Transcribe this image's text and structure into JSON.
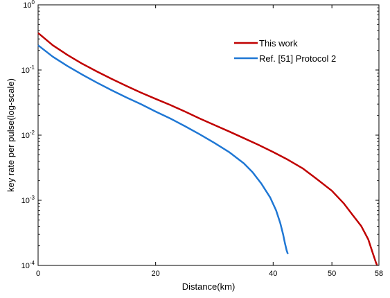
{
  "chart_data": {
    "type": "line",
    "title": "",
    "xlabel": "Distance(km)",
    "ylabel": "key rate per pulse(log-scale)",
    "xlim": [
      0,
      58
    ],
    "ylim": [
      0.0001,
      1
    ],
    "yscale": "log",
    "grid": false,
    "legend_position": "top-right",
    "x_ticks": [
      {
        "value": 0,
        "label": "0"
      },
      {
        "value": 20,
        "label": "20"
      },
      {
        "value": 40,
        "label": "40"
      },
      {
        "value": 50,
        "label": "50"
      },
      {
        "value": 58,
        "label": "58"
      }
    ],
    "y_ticks": [
      {
        "value": 0.0001,
        "base": "10",
        "exp": "-4"
      },
      {
        "value": 0.001,
        "base": "10",
        "exp": "-3"
      },
      {
        "value": 0.01,
        "base": "10",
        "exp": "-2"
      },
      {
        "value": 0.1,
        "base": "10",
        "exp": "-1"
      },
      {
        "value": 1,
        "base": "10",
        "exp": "0"
      }
    ],
    "series": [
      {
        "name": "This work",
        "color": "#c00000",
        "x": [
          0,
          2.5,
          5,
          7.5,
          10,
          12.5,
          15,
          17.5,
          20,
          22.5,
          25,
          27.5,
          30,
          32.5,
          35,
          37.5,
          40,
          42.5,
          45,
          47.5,
          50,
          52,
          53.5,
          55,
          56.2,
          57,
          57.5,
          57.7
        ],
        "y": [
          0.37,
          0.24,
          0.17,
          0.125,
          0.095,
          0.073,
          0.057,
          0.045,
          0.036,
          0.029,
          0.023,
          0.018,
          0.0143,
          0.0114,
          0.009,
          0.0071,
          0.0055,
          0.0042,
          0.0031,
          0.0021,
          0.0014,
          0.0009,
          0.0006,
          0.0004,
          0.00025,
          0.00015,
          0.00011,
          0.0001
        ]
      },
      {
        "name": "Ref. [51] Protocol 2",
        "color": "#1f77d4",
        "x": [
          0,
          2.5,
          5,
          7.5,
          10,
          12.5,
          15,
          17.5,
          20,
          22.5,
          25,
          27.5,
          30,
          32.5,
          35,
          36.5,
          38,
          39.5,
          40.5,
          41.2,
          41.7,
          42,
          42.3,
          42.5
        ],
        "y": [
          0.24,
          0.16,
          0.115,
          0.085,
          0.064,
          0.049,
          0.038,
          0.03,
          0.023,
          0.018,
          0.0137,
          0.0103,
          0.0076,
          0.0055,
          0.0037,
          0.0027,
          0.0018,
          0.0011,
          0.0007,
          0.00045,
          0.0003,
          0.00022,
          0.00017,
          0.00015
        ]
      }
    ]
  }
}
